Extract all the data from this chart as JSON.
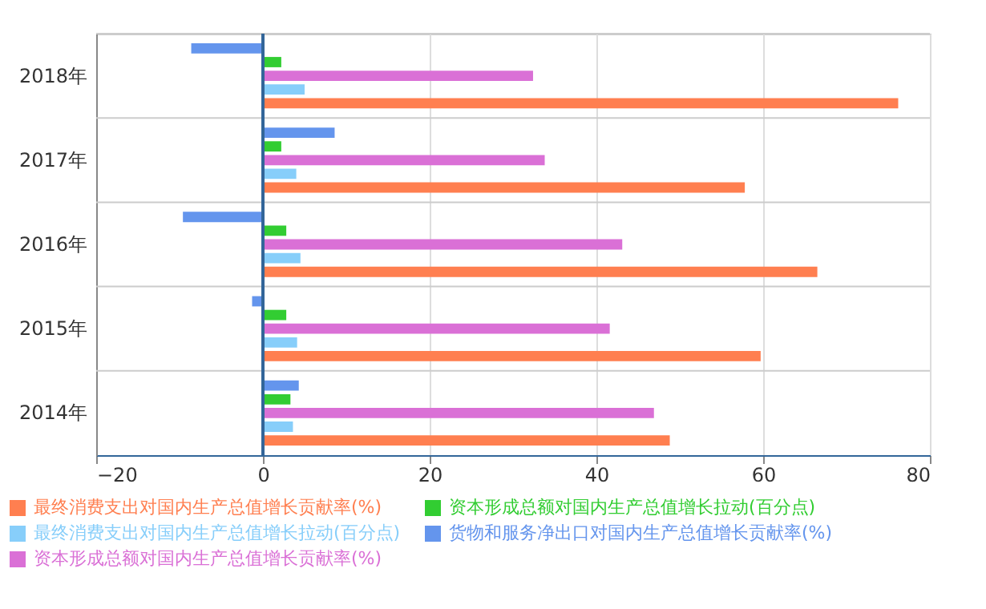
{
  "chart_data": {
    "type": "bar",
    "orientation": "horizontal",
    "categories": [
      "2018年",
      "2017年",
      "2016年",
      "2015年",
      "2014年"
    ],
    "series": [
      {
        "name": "最终消费支出对国内生产总值增长贡献率(%)",
        "color": "#ff7f50",
        "values": [
          76.2,
          57.8,
          66.5,
          59.7,
          48.8
        ]
      },
      {
        "name": "最终消费支出对国内生产总值增长拉动(百分点)",
        "color": "#87cefa",
        "values": [
          5,
          4,
          4.5,
          4.1,
          3.6
        ]
      },
      {
        "name": "资本形成总额对国内生产总值增长贡献率(%)",
        "color": "#da70d6",
        "values": [
          32.4,
          33.8,
          43.1,
          41.6,
          46.9
        ]
      },
      {
        "name": "资本形成总额对国内生产总值增长拉动(百分点)",
        "color": "#32cd32",
        "values": [
          2.2,
          2.2,
          2.8,
          2.8,
          3.3
        ]
      },
      {
        "name": "货物和服务净出口对国内生产总值增长贡献率(%)",
        "color": "#6495ed",
        "values": [
          -8.6,
          8.6,
          -9.6,
          -1.3,
          4.3
        ]
      }
    ],
    "xlim": [
      -20,
      80
    ],
    "xticks": [
      -20,
      0,
      20,
      40,
      60,
      80
    ],
    "grid": true,
    "legend": "bottom",
    "ref_lines": [
      {
        "axis": "x",
        "value": 0,
        "color": "#336699"
      }
    ]
  }
}
